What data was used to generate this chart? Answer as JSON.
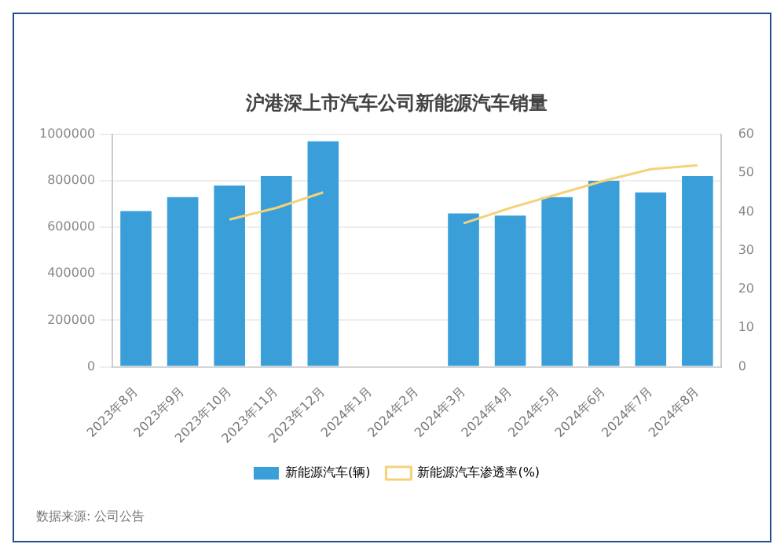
{
  "chart_data": {
    "type": "bar",
    "title": "沪港深上市汽车公司新能源汽车销量",
    "categories": [
      "2023年8月",
      "2023年9月",
      "2023年10月",
      "2023年11月",
      "2023年12月",
      "2024年1月",
      "2024年2月",
      "2024年3月",
      "2024年4月",
      "2024年5月",
      "2024年6月",
      "2024年7月",
      "2024年8月"
    ],
    "series": [
      {
        "name": "新能源汽车(辆)",
        "color": "#3a9fd8",
        "values": [
          670000,
          730000,
          780000,
          820000,
          970000,
          null,
          null,
          660000,
          650000,
          730000,
          800000,
          750000,
          820000
        ]
      },
      {
        "name": "新能源汽车渗透率(%)",
        "type": "line",
        "axis": "y2",
        "color": "#f5d27a",
        "values": [
          null,
          null,
          38,
          41,
          45,
          null,
          null,
          37,
          41,
          44.5,
          48,
          51,
          52
        ]
      }
    ],
    "ylim": [
      0,
      1000000
    ],
    "yticks": [
      0,
      200000,
      400000,
      600000,
      800000,
      1000000
    ],
    "y2lim": [
      0,
      60
    ],
    "y2ticks": [
      0,
      10,
      20,
      30,
      40,
      50,
      60
    ],
    "grid": "y",
    "legend": "bottom",
    "marker": "none",
    "line_style": "solid",
    "annotations": [
      "数据来源: 公司公告"
    ]
  }
}
